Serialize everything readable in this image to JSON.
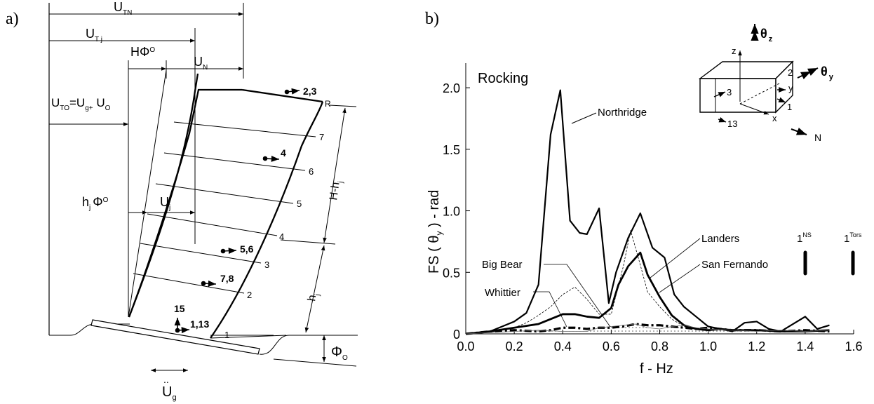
{
  "panel_a": {
    "label": "a)",
    "dims": {
      "UTN": "U",
      "UTN_sub": "TN",
      "UTj": "U",
      "UTj_sub": "T j",
      "HPhi": "HΦ",
      "HPhi_sub": "O",
      "UN": "U",
      "UN_sub": "N",
      "UTO": "U",
      "UTO_sub": "TO",
      "UTO_eq": "=U",
      "UTO_g": "g+",
      "UTO_U": " U",
      "UTO_o": "O",
      "hj": "h",
      "hj_sub": "j",
      "hj_phi": "Φ",
      "hj_phi_sub": "O",
      "Uj": "U",
      "Uj_sub": "j",
      "Hhj": "H-h",
      "Hhj_sub": "j",
      "hj2": "h",
      "hj2_sub": "j",
      "Phi0": "Φ",
      "Phi0_sub": "O",
      "Ug_dots": "..",
      "Ug": "U",
      "Ug_sub": "g"
    },
    "floors": [
      "1",
      "2",
      "3",
      "4",
      "5",
      "6",
      "7",
      "R"
    ],
    "channels": [
      "2,3",
      "4",
      "5,6",
      "7,8",
      "15",
      "1,13"
    ]
  },
  "panel_b": {
    "label": "b)",
    "inset": {
      "theta_z": "θ",
      "theta_z_sub": "z",
      "theta_y": "θ",
      "theta_y_sub": "y",
      "z": "z",
      "y": "y",
      "x": "x",
      "n2": "2",
      "n3": "3",
      "n1": "1",
      "n13": "13",
      "N": "N"
    },
    "annotations": {
      "rocking": "Rocking",
      "northridge": "Northridge",
      "big_bear": "Big Bear",
      "whittier": "Whittier",
      "landers": "Landers",
      "san_fernando": "San Fernando",
      "ns_base": "1",
      "ns_sup": "NS",
      "tors_base": "1",
      "tors_sup": "Tors"
    }
  },
  "chart_data": {
    "type": "line",
    "title": "",
    "xlabel": "f - Hz",
    "ylabel": "FS ( θ y ) - rad",
    "xlim": [
      0,
      1.6
    ],
    "ylim": [
      0,
      2.2
    ],
    "xticks": [
      "0.0",
      "0.2",
      "0.4",
      "0.6",
      "0.8",
      "1.0",
      "1.2",
      "1.4",
      "1.6"
    ],
    "yticks": [
      "0",
      "0.5",
      "1.0",
      "1.5",
      "2.0"
    ],
    "grid": false,
    "legend": "none",
    "series": [
      {
        "name": "Northridge",
        "x": [
          0.0,
          0.05,
          0.1,
          0.15,
          0.2,
          0.25,
          0.3,
          0.35,
          0.39,
          0.43,
          0.47,
          0.5,
          0.55,
          0.59,
          0.62,
          0.67,
          0.72,
          0.77,
          0.82,
          0.86,
          0.9,
          0.95,
          1.0,
          1.05,
          1.1,
          1.15,
          1.2,
          1.25,
          1.3,
          1.35,
          1.4,
          1.45,
          1.5
        ],
        "y": [
          0.0,
          0.01,
          0.02,
          0.06,
          0.1,
          0.17,
          0.4,
          1.62,
          1.98,
          0.92,
          0.82,
          0.81,
          1.02,
          0.25,
          0.5,
          0.78,
          0.98,
          0.7,
          0.62,
          0.32,
          0.22,
          0.14,
          0.06,
          0.04,
          0.02,
          0.09,
          0.1,
          0.04,
          0.02,
          0.08,
          0.14,
          0.04,
          0.07
        ]
      },
      {
        "name": "Landers",
        "x": [
          0.0,
          0.1,
          0.2,
          0.3,
          0.35,
          0.4,
          0.45,
          0.5,
          0.55,
          0.6,
          0.63,
          0.67,
          0.72,
          0.75,
          0.8,
          0.85,
          0.9,
          0.95,
          1.0,
          1.05,
          1.1,
          1.2,
          1.3,
          1.4,
          1.5
        ],
        "y": [
          0.0,
          0.02,
          0.05,
          0.08,
          0.12,
          0.16,
          0.16,
          0.14,
          0.13,
          0.21,
          0.4,
          0.55,
          0.66,
          0.48,
          0.3,
          0.15,
          0.07,
          0.04,
          0.03,
          0.04,
          0.03,
          0.03,
          0.02,
          0.02,
          0.03
        ]
      },
      {
        "name": "San Fernando",
        "x": [
          0.0,
          0.1,
          0.2,
          0.3,
          0.35,
          0.4,
          0.45,
          0.5,
          0.55,
          0.6,
          0.65,
          0.7,
          0.75,
          0.8,
          0.85,
          0.9,
          0.95,
          1.0,
          1.05,
          1.1,
          1.2,
          1.3,
          1.4,
          1.5
        ],
        "y": [
          0.0,
          0.02,
          0.03,
          0.02,
          0.03,
          0.05,
          0.05,
          0.04,
          0.05,
          0.05,
          0.06,
          0.08,
          0.07,
          0.07,
          0.06,
          0.05,
          0.04,
          0.05,
          0.04,
          0.03,
          0.03,
          0.02,
          0.03,
          0.02
        ]
      },
      {
        "name": "Big Bear",
        "x": [
          0.0,
          0.1,
          0.2,
          0.25,
          0.3,
          0.35,
          0.4,
          0.45,
          0.5,
          0.55,
          0.6,
          0.65,
          0.68,
          0.72,
          0.75,
          0.8,
          0.85,
          0.9,
          0.95,
          1.0,
          1.1,
          1.2,
          1.3,
          1.4,
          1.5
        ],
        "y": [
          0.0,
          0.02,
          0.05,
          0.09,
          0.15,
          0.22,
          0.32,
          0.38,
          0.28,
          0.16,
          0.16,
          0.55,
          0.84,
          0.56,
          0.34,
          0.22,
          0.12,
          0.06,
          0.04,
          0.03,
          0.03,
          0.03,
          0.02,
          0.03,
          0.02
        ]
      },
      {
        "name": "Whittier",
        "x": [
          0.0,
          0.1,
          0.2,
          0.3,
          0.4,
          0.5,
          0.55,
          0.6,
          0.65,
          0.7,
          0.75,
          0.8,
          0.85,
          0.9,
          0.95,
          1.0,
          1.1,
          1.2,
          1.3,
          1.4,
          1.5
        ],
        "y": [
          0.0,
          0.01,
          0.02,
          0.03,
          0.02,
          0.02,
          0.05,
          0.06,
          0.07,
          0.08,
          0.05,
          0.04,
          0.06,
          0.07,
          0.05,
          0.04,
          0.03,
          0.02,
          0.03,
          0.02,
          0.03
        ]
      }
    ]
  }
}
